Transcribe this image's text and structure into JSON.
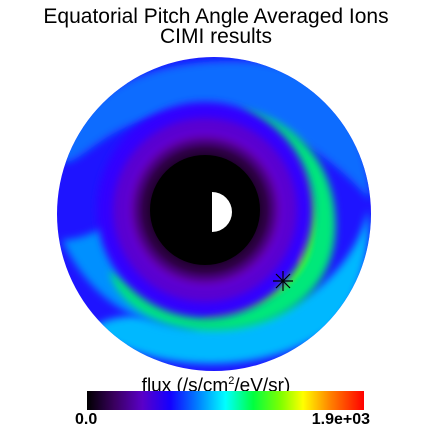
{
  "chart_data": {
    "type": "heatmap",
    "title": "Equatorial Pitch Angle Averaged Ions",
    "subtitle": "CIMI results",
    "colorbar": {
      "label_prefix": "flux (/s/cm",
      "label_sup": "2",
      "label_suffix": "/eV/sr)",
      "min_label": "0.0",
      "max_label": "1.9e+03",
      "colormap": "rainbow",
      "range": [
        0,
        1900
      ]
    },
    "features": {
      "earth": "half-lit disc at center",
      "marker": "asterisk-star",
      "grid": false,
      "axes": false
    },
    "colors": {
      "background": "#ffffff",
      "void": "#000000",
      "low": "#1400ff",
      "mid": "#00ffff",
      "high": "#ffff00"
    }
  }
}
